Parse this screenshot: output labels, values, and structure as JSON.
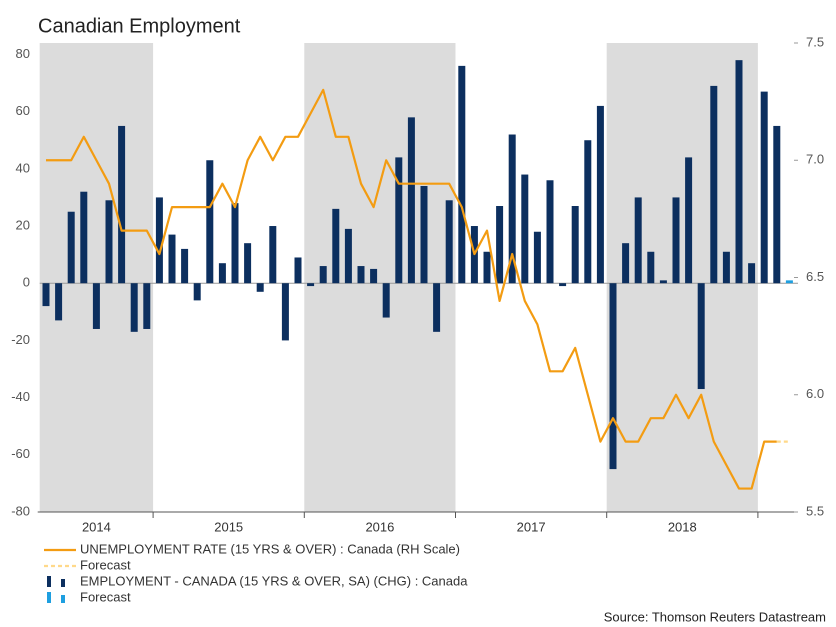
{
  "chart_data": {
    "type": "combo",
    "title": "Canadian Employment",
    "source": "Source: Thomson Reuters Datastream",
    "years": [
      "2014",
      "2015",
      "2016",
      "2017",
      "2018"
    ],
    "categories": [
      null,
      null,
      null,
      null,
      null,
      null,
      null,
      null,
      null,
      null,
      null,
      null,
      null,
      null,
      null,
      null,
      null,
      null,
      null,
      null,
      null,
      null,
      null,
      null,
      null,
      null,
      null,
      null,
      null,
      null,
      null,
      null,
      null,
      null,
      null,
      null,
      null,
      null,
      null,
      null,
      null,
      null,
      null,
      null,
      null,
      null,
      null,
      null,
      null,
      null,
      null,
      null,
      null,
      null,
      null,
      null,
      null,
      null,
      null,
      null
    ],
    "ylim": [
      -80,
      84
    ],
    "yticks": [
      -80,
      -60,
      -40,
      -20,
      0,
      20,
      40,
      60,
      80
    ],
    "y2lim": [
      5.5,
      7.5
    ],
    "y2ticks": [
      5.5,
      {
        "value": 6,
        "label": "6.0"
      },
      6.5,
      {
        "value": 7,
        "label": "7.0"
      },
      7.5
    ],
    "series": [
      {
        "name": "UNEMPLOYMENT RATE (15 YRS & OVER) : Canada (RH Scale)",
        "type": "line",
        "axis": "y2",
        "color": "#f39c12",
        "values": [
          7.0,
          7.0,
          7.0,
          7.1,
          7.0,
          6.9,
          6.7,
          6.7,
          6.7,
          6.6,
          6.8,
          6.8,
          6.8,
          6.8,
          6.9,
          6.8,
          7.0,
          7.1,
          7.0,
          7.1,
          7.1,
          7.2,
          7.3,
          7.1,
          7.1,
          6.9,
          6.8,
          7.0,
          6.9,
          6.9,
          6.9,
          6.9,
          6.9,
          6.8,
          6.6,
          6.7,
          6.4,
          6.6,
          6.4,
          6.3,
          6.1,
          6.1,
          6.2,
          6.0,
          5.8,
          5.9,
          5.8,
          5.8,
          5.9,
          5.9,
          6.0,
          5.9,
          6.0,
          5.8,
          5.7,
          5.6,
          5.6,
          5.8,
          5.8,
          null
        ]
      },
      {
        "name": "Forecast",
        "type": "line",
        "axis": "y2",
        "color": "#ffd98a",
        "dashed": true,
        "values": [
          null,
          null,
          null,
          null,
          null,
          null,
          null,
          null,
          null,
          null,
          null,
          null,
          null,
          null,
          null,
          null,
          null,
          null,
          null,
          null,
          null,
          null,
          null,
          null,
          null,
          null,
          null,
          null,
          null,
          null,
          null,
          null,
          null,
          null,
          null,
          null,
          null,
          null,
          null,
          null,
          null,
          null,
          null,
          null,
          null,
          null,
          null,
          null,
          null,
          null,
          null,
          null,
          null,
          null,
          null,
          null,
          null,
          null,
          5.8,
          5.8
        ]
      },
      {
        "name": "EMPLOYMENT - CANADA (15 YRS & OVER, SA) (CHG) : Canada",
        "type": "bar",
        "color": "#0c2f5f",
        "values": [
          -8,
          -13,
          25,
          32,
          -16,
          29,
          55,
          -17,
          -16,
          30,
          17,
          12,
          -6,
          43,
          7,
          28,
          14,
          -3,
          20,
          -20,
          9,
          -1,
          6,
          26,
          19,
          6,
          5,
          -12,
          44,
          58,
          34,
          -17,
          29,
          76,
          20,
          11,
          27,
          52,
          38,
          18,
          36,
          -1,
          27,
          50,
          62,
          -65,
          14,
          30,
          11,
          1,
          30,
          44,
          -37,
          69,
          11,
          78,
          7,
          67,
          55,
          null
        ]
      },
      {
        "name": "Forecast",
        "type": "bar",
        "color": "#1e9fe0",
        "values": [
          null,
          null,
          null,
          null,
          null,
          null,
          null,
          null,
          null,
          null,
          null,
          null,
          null,
          null,
          null,
          null,
          null,
          null,
          null,
          null,
          null,
          null,
          null,
          null,
          null,
          null,
          null,
          null,
          null,
          null,
          null,
          null,
          null,
          null,
          null,
          null,
          null,
          null,
          null,
          null,
          null,
          null,
          null,
          null,
          null,
          null,
          null,
          null,
          null,
          null,
          null,
          null,
          null,
          null,
          null,
          null,
          null,
          null,
          null,
          1
        ]
      }
    ]
  }
}
